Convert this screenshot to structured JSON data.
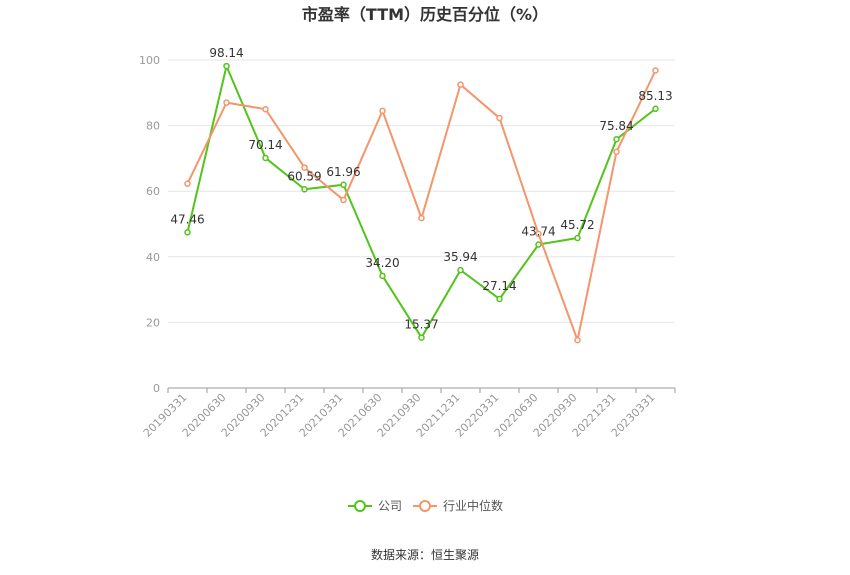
{
  "chart_data": {
    "type": "line",
    "title": "市盈率（TTM）历史百分位（%）",
    "categories": [
      "20190331",
      "20200630",
      "20200930",
      "20201231",
      "20210331",
      "20210630",
      "20210930",
      "20211231",
      "20220331",
      "20220630",
      "20220930",
      "20221231",
      "20230331"
    ],
    "ylim": [
      0,
      100
    ],
    "yticks": [
      0,
      20,
      40,
      60,
      80,
      100
    ],
    "grid": true,
    "legend_position": "bottom",
    "series": [
      {
        "name": "公司",
        "color": "#52c41a",
        "values": [
          47.46,
          98.14,
          70.14,
          60.59,
          61.96,
          34.2,
          15.37,
          35.94,
          27.14,
          43.74,
          45.72,
          75.84,
          85.13
        ],
        "labels": [
          "47.46",
          "98.14",
          "70.14",
          "60.59",
          "61.96",
          "34.20",
          "15.37",
          "35.94",
          "27.14",
          "43.74",
          "45.72",
          "75.84",
          "85.13"
        ]
      },
      {
        "name": "行业中位数",
        "color": "#f4956a",
        "values": [
          62.3,
          87.0,
          85.0,
          67.2,
          57.3,
          84.5,
          51.8,
          92.5,
          82.3,
          47.0,
          14.6,
          72.0,
          96.8
        ]
      }
    ],
    "source": "数据来源：恒生聚源"
  }
}
